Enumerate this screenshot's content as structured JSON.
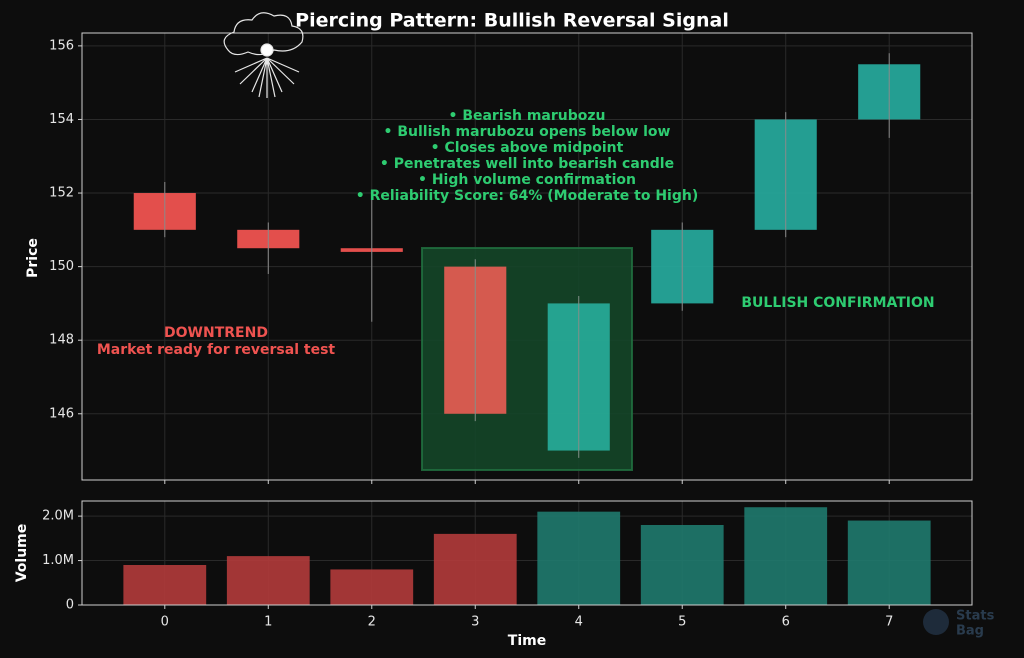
{
  "chart_data": [
    {
      "type": "candlestick",
      "title": "Piercing Pattern: Bullish Reversal Signal",
      "ylabel": "Price",
      "x": [
        0,
        1,
        2,
        3,
        4,
        5,
        6,
        7
      ],
      "open": [
        152,
        151,
        150.5,
        150,
        145,
        149,
        151,
        154
      ],
      "high": [
        152.3,
        151.2,
        152,
        150.2,
        149.2,
        151.2,
        154.2,
        155.8
      ],
      "low": [
        150.8,
        149.8,
        148.5,
        145.8,
        144.8,
        148.8,
        150.8,
        153.5
      ],
      "close": [
        151,
        150.5,
        150.4,
        146,
        149,
        151,
        154,
        155.5
      ],
      "up_color": "#26a69a",
      "down_color": "#ef5350",
      "xlim": [
        -0.8,
        7.8
      ],
      "ylim": [
        144.2,
        156.35
      ],
      "yticks": [
        146,
        148,
        150,
        152,
        154,
        156
      ],
      "grid": true,
      "pattern_notes": [
        "• Bearish marubozu",
        "• Bullish marubozu opens below low",
        "• Closes above midpoint",
        "• Penetrates well into bearish candle",
        "• High volume confirmation",
        "• Reliability Score: 64% (Moderate to High)"
      ],
      "downtrend_note": [
        "DOWNTREND",
        "Market ready for reversal test"
      ],
      "bullish_note": "BULLISH CONFIRMATION"
    },
    {
      "type": "bar",
      "ylabel": "Volume",
      "xlabel": "Time",
      "x": [
        0,
        1,
        2,
        3,
        4,
        5,
        6,
        7
      ],
      "values": [
        900000,
        1100000,
        800000,
        1600000,
        2100000,
        1800000,
        2200000,
        1900000
      ],
      "colors": [
        "#b23b3b",
        "#b23b3b",
        "#b23b3b",
        "#b23b3b",
        "#1f7a6e",
        "#1f7a6e",
        "#1f7a6e",
        "#1f7a6e"
      ],
      "xlim": [
        -0.8,
        7.8
      ],
      "xticks": [
        0,
        1,
        2,
        3,
        4,
        5,
        6,
        7
      ],
      "ylim": [
        0,
        2340000
      ],
      "yticks": [
        0,
        {
          "value": 1000000,
          "label": "1.0M"
        },
        {
          "value": 2000000,
          "label": "2.0M"
        }
      ],
      "grid": true
    }
  ],
  "watermark": [
    "Stats",
    "Bag"
  ]
}
